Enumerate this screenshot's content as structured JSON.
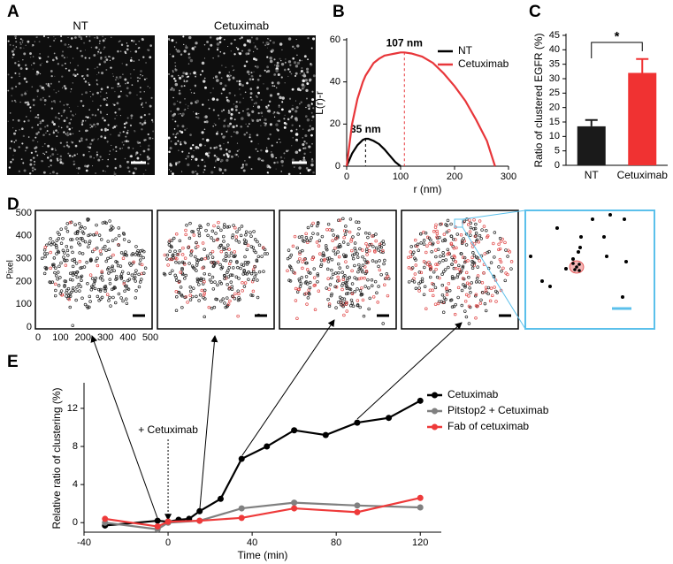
{
  "panel_labels": [
    "A",
    "B",
    "C",
    "D",
    "E"
  ],
  "panel_a": {
    "titles": [
      "NT",
      "Cetuximab"
    ]
  },
  "chart_data": [
    {
      "type": "line",
      "x_label": "r (nm)",
      "y_label": "L(r)-r",
      "x": [
        0,
        10,
        20,
        30,
        35,
        40,
        50,
        60,
        70,
        80,
        90,
        100,
        107,
        120,
        140,
        160,
        180,
        200,
        220,
        240,
        260,
        275
      ],
      "series": [
        {
          "name": "NT",
          "color": "#000000",
          "values": [
            0,
            6,
            10,
            12.5,
            13,
            13,
            12,
            10.5,
            8,
            5,
            2,
            0,
            null,
            null,
            null,
            null,
            null,
            null,
            null,
            null,
            null,
            null
          ]
        },
        {
          "name": "Cetuximab",
          "color": "#e8363a",
          "values": [
            0,
            20,
            32,
            40,
            43,
            45,
            49,
            51,
            52.5,
            53,
            53.5,
            54,
            54,
            53.5,
            52,
            49,
            44,
            38,
            31,
            22,
            12,
            0
          ]
        }
      ],
      "xlim": [
        0,
        300
      ],
      "xticks": [
        0,
        100,
        200,
        300
      ],
      "ylim": [
        0,
        60
      ],
      "yticks": [
        0,
        20,
        40,
        60
      ],
      "legend": "upper right",
      "annotations": [
        {
          "text": "35 nm",
          "x": 35,
          "y": 13,
          "color": "#000000"
        },
        {
          "text": "107 nm",
          "x": 107,
          "y": 54,
          "color": "#e8363a"
        }
      ]
    },
    {
      "type": "bar",
      "y_label": "Ratio of clustered EGFR (%)",
      "categories": [
        "NT",
        "Cetuximab"
      ],
      "values": [
        13.5,
        32
      ],
      "errors": [
        2.2,
        4.8
      ],
      "colors": [
        "#1a1a1a",
        "#f03232"
      ],
      "ylim": [
        0,
        45
      ],
      "yticks": [
        0,
        5,
        10,
        15,
        20,
        25,
        30,
        35,
        40,
        45
      ],
      "significance": "*"
    },
    {
      "type": "scatter",
      "y_label": "Pixel",
      "xlim": [
        0,
        500
      ],
      "xticks": [
        0,
        100,
        200,
        300,
        400,
        500
      ],
      "ylim": [
        0,
        500
      ],
      "yticks": [
        0,
        100,
        200,
        300,
        400,
        500
      ]
    },
    {
      "type": "line",
      "x_label": "Time (min)",
      "y_label": "Relative ratio of clustering (%)",
      "markers": true,
      "series": [
        {
          "name": "Cetuximab",
          "color": "#000000",
          "x": [
            -30,
            -5,
            0,
            5,
            10,
            15,
            25,
            35,
            47,
            60,
            75,
            90,
            105,
            120
          ],
          "values": [
            -0.3,
            0.2,
            0.1,
            0.3,
            0.4,
            1.2,
            2.5,
            6.7,
            8.0,
            9.7,
            9.2,
            10.5,
            11,
            12.8
          ]
        },
        {
          "name": "Pitstop2 + Cetuximab",
          "color": "#808080",
          "x": [
            -30,
            -5,
            0,
            15,
            35,
            60,
            90,
            120
          ],
          "values": [
            0,
            -0.7,
            0,
            0.2,
            1.5,
            2.1,
            1.8,
            1.6
          ]
        },
        {
          "name": "Fab of cetuximab",
          "color": "#ee3a3a",
          "x": [
            -30,
            -5,
            0,
            15,
            35,
            60,
            90,
            120
          ],
          "values": [
            0.4,
            -0.4,
            0.1,
            0.2,
            0.5,
            1.5,
            1.1,
            2.6
          ]
        }
      ],
      "xlim": [
        -40,
        130
      ],
      "xticks": [
        -40,
        0,
        40,
        80,
        120
      ],
      "ylim": [
        -1,
        14.5
      ],
      "yticks": [
        0,
        4,
        8,
        12
      ],
      "legend": "right",
      "annotations": [
        {
          "text": "+ Cetuximab",
          "x": 0
        }
      ]
    }
  ]
}
